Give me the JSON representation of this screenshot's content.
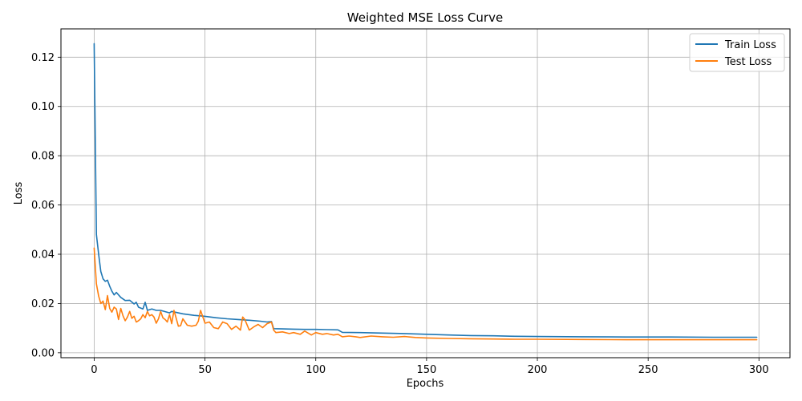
{
  "chart_data": {
    "type": "line",
    "title": "Weighted MSE Loss Curve",
    "xlabel": "Epochs",
    "ylabel": "Loss",
    "xlim": [
      -15,
      314
    ],
    "ylim": [
      -0.002,
      0.1315
    ],
    "xticks": [
      0,
      50,
      100,
      150,
      200,
      250,
      300
    ],
    "xtick_labels": [
      "0",
      "50",
      "100",
      "150",
      "200",
      "250",
      "300"
    ],
    "yticks": [
      0.0,
      0.02,
      0.04,
      0.06,
      0.08,
      0.1,
      0.12
    ],
    "ytick_labels": [
      "0.00",
      "0.02",
      "0.04",
      "0.06",
      "0.08",
      "0.10",
      "0.12"
    ],
    "grid": true,
    "legend_position": "upper right",
    "series": [
      {
        "name": "Train Loss",
        "color": "#1f77b4",
        "x": [
          0,
          1,
          2,
          3,
          4,
          5,
          6,
          7,
          8,
          9,
          10,
          12,
          14,
          16,
          18,
          19,
          20,
          22,
          23,
          24,
          26,
          28,
          30,
          34,
          35,
          40,
          45,
          50,
          55,
          60,
          65,
          70,
          75,
          78,
          80,
          81,
          85,
          90,
          95,
          100,
          105,
          110,
          112,
          120,
          130,
          140,
          150,
          160,
          170,
          180,
          190,
          200,
          220,
          240,
          260,
          280,
          299
        ],
        "values": [
          0.1255,
          0.048,
          0.04,
          0.033,
          0.03,
          0.029,
          0.0295,
          0.027,
          0.025,
          0.0235,
          0.0245,
          0.0225,
          0.0212,
          0.0213,
          0.0198,
          0.0205,
          0.0185,
          0.0178,
          0.0205,
          0.0172,
          0.0178,
          0.0172,
          0.0172,
          0.0162,
          0.0168,
          0.0158,
          0.0152,
          0.0148,
          0.0142,
          0.0138,
          0.0135,
          0.0132,
          0.0128,
          0.0125,
          0.0127,
          0.0098,
          0.0097,
          0.0096,
          0.0095,
          0.0095,
          0.0094,
          0.0093,
          0.0083,
          0.0082,
          0.008,
          0.0078,
          0.0075,
          0.0072,
          0.007,
          0.0069,
          0.0067,
          0.0066,
          0.0065,
          0.0064,
          0.0064,
          0.0063,
          0.0063
        ]
      },
      {
        "name": "Test Loss",
        "color": "#ff7f0e",
        "x": [
          0,
          1,
          2,
          3,
          4,
          5,
          6,
          7,
          8,
          9,
          10,
          11,
          12,
          13,
          14,
          15,
          16,
          17,
          18,
          19,
          20,
          21,
          22,
          23,
          24,
          25,
          26,
          27,
          28,
          29,
          30,
          31,
          32,
          33,
          34,
          35,
          36,
          37,
          38,
          39,
          40,
          42,
          44,
          46,
          47,
          48,
          50,
          52,
          54,
          56,
          58,
          60,
          62,
          64,
          66,
          67,
          68,
          70,
          72,
          74,
          76,
          78,
          80,
          81,
          82,
          85,
          88,
          90,
          93,
          95,
          98,
          100,
          103,
          105,
          108,
          110,
          112,
          115,
          118,
          120,
          125,
          130,
          135,
          140,
          145,
          150,
          160,
          170,
          180,
          190,
          200,
          220,
          240,
          260,
          280,
          299
        ],
        "values": [
          0.0425,
          0.028,
          0.023,
          0.02,
          0.021,
          0.0175,
          0.0232,
          0.018,
          0.0165,
          0.0185,
          0.0178,
          0.0135,
          0.018,
          0.015,
          0.013,
          0.0145,
          0.0168,
          0.014,
          0.0148,
          0.0125,
          0.013,
          0.0138,
          0.0155,
          0.0142,
          0.0168,
          0.015,
          0.0155,
          0.0145,
          0.012,
          0.0138,
          0.0168,
          0.0142,
          0.0135,
          0.0125,
          0.0155,
          0.0118,
          0.0172,
          0.014,
          0.0108,
          0.011,
          0.0138,
          0.0112,
          0.0108,
          0.0112,
          0.0128,
          0.0172,
          0.012,
          0.0125,
          0.0102,
          0.0098,
          0.0125,
          0.0118,
          0.0095,
          0.0108,
          0.0092,
          0.0145,
          0.0135,
          0.0092,
          0.0105,
          0.0115,
          0.0102,
          0.0118,
          0.0125,
          0.0092,
          0.0082,
          0.0085,
          0.0078,
          0.0082,
          0.0075,
          0.0088,
          0.0072,
          0.0082,
          0.0075,
          0.0078,
          0.0072,
          0.0075,
          0.0065,
          0.0068,
          0.0065,
          0.0062,
          0.0068,
          0.0065,
          0.0063,
          0.0066,
          0.0062,
          0.006,
          0.0058,
          0.0057,
          0.0056,
          0.0055,
          0.0055,
          0.0054,
          0.0053,
          0.0053,
          0.0053,
          0.0053
        ]
      }
    ]
  }
}
